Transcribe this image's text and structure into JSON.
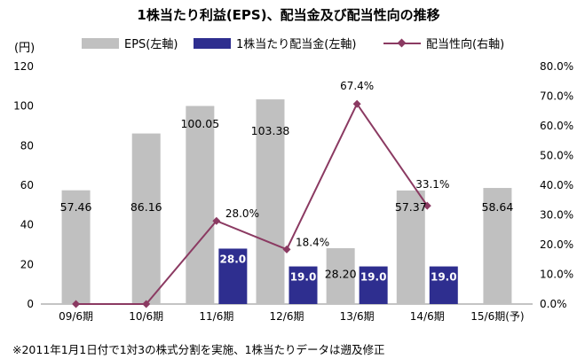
{
  "title": "1株当たり利益(EPS)、配当金及び配当性向の推移",
  "unit_label": "(円)",
  "footnote": "※2011年1月1日付で1対3の株式分割を実施、1株当たりデータは遡及修正",
  "colors": {
    "eps": "#c0c0c0",
    "dividend": "#2e2e8f",
    "payout": "#8b3a62"
  },
  "chart_data": {
    "type": "bar",
    "categories": [
      "09/6期",
      "10/6期",
      "11/6期",
      "12/6期",
      "13/6期",
      "14/6期",
      "15/6期(予)"
    ],
    "series": [
      {
        "name": "EPS(左軸)",
        "type": "bar",
        "axis": "left",
        "values": [
          57.46,
          86.16,
          100.05,
          103.38,
          28.2,
          57.37,
          58.64
        ],
        "labels": [
          "57.46",
          "86.16",
          "100.05",
          "103.38",
          "28.20",
          "57.37",
          "58.64"
        ]
      },
      {
        "name": "1株当たり配当金(左軸)",
        "type": "bar",
        "axis": "left",
        "values": [
          0,
          0,
          28.0,
          19.0,
          19.0,
          19.0,
          null
        ],
        "labels": [
          "",
          "",
          "28.0",
          "19.0",
          "19.0",
          "19.0",
          ""
        ]
      },
      {
        "name": "配当性向(右軸)",
        "type": "line",
        "axis": "right",
        "values": [
          0,
          0,
          28.0,
          18.4,
          67.4,
          33.1,
          null
        ],
        "labels": [
          "",
          "",
          "28.0%",
          "18.4%",
          "67.4%",
          "33.1%",
          ""
        ]
      }
    ],
    "ylim_left": [
      0,
      120
    ],
    "yticks_left": [
      "0",
      "20",
      "40",
      "60",
      "80",
      "100",
      "120"
    ],
    "ylim_right": [
      0,
      80
    ],
    "yticks_right": [
      "0.0%",
      "10.0%",
      "20.0%",
      "30.0%",
      "40.0%",
      "50.0%",
      "60.0%",
      "70.0%",
      "80.0%"
    ],
    "legend_position": "top",
    "grid": false
  }
}
